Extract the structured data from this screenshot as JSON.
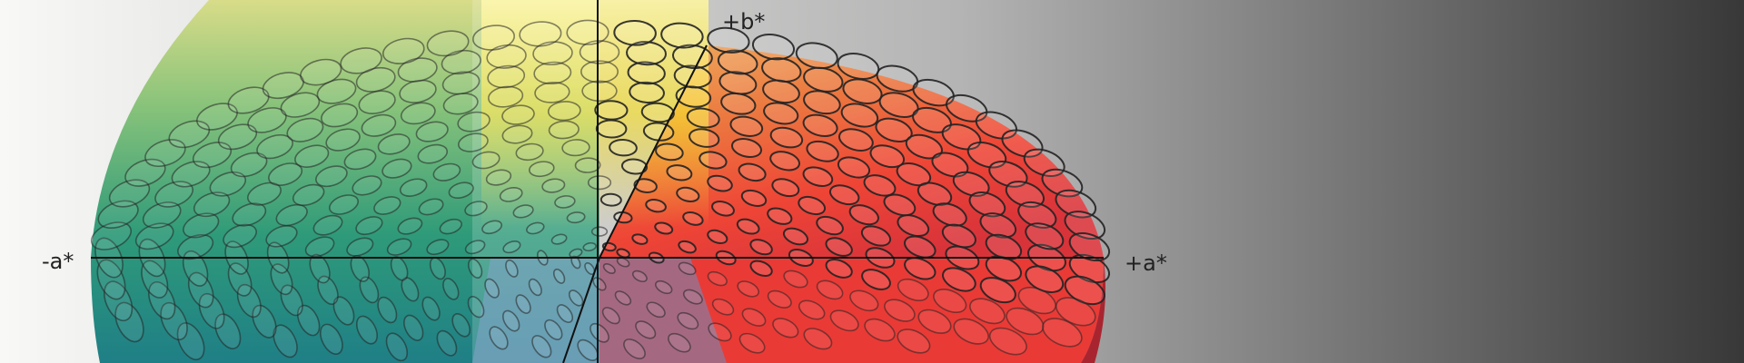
{
  "diagram": {
    "axes": {
      "plus_b": "+b*",
      "minus_a": "-a*",
      "plus_a": "+a*"
    },
    "colors": {
      "background_left": "#f7f7f5",
      "background_right": "#3a3a3a",
      "yellow": "#f5e020",
      "green": "#2e9a78",
      "teal": "#1f7f86",
      "orange": "#e8894a",
      "red": "#ee3a33",
      "blue": "#3c86c0",
      "ellipse_stroke": "#222222"
    }
  }
}
